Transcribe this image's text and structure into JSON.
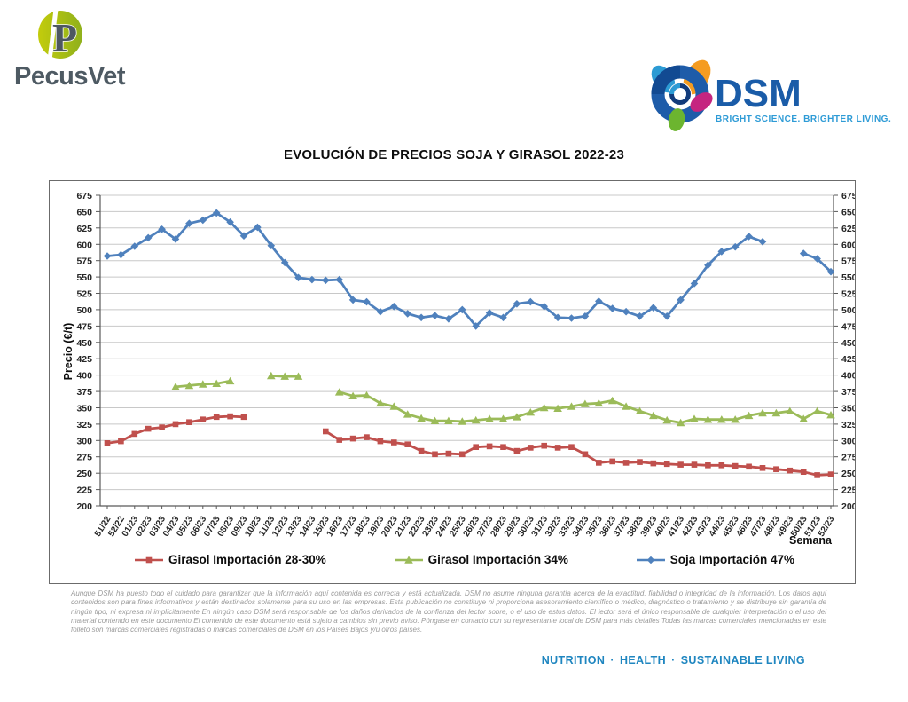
{
  "header": {
    "pecusvet_logo_text": "PecusVet",
    "dsm_logo_text": "DSM",
    "dsm_tagline": "BRIGHT SCIENCE. BRIGHTER LIVING."
  },
  "chart_data": {
    "type": "line",
    "title": "EVOLUCIÓN DE PRECIOS SOJA Y GIRASOL 2022-23",
    "ylabel": "Precio (€/t)",
    "xlabel": "Semana",
    "ylim": [
      200,
      675
    ],
    "ytick_step": 25,
    "grid": true,
    "legend_position": "bottom",
    "categories": [
      "51/22",
      "52/22",
      "01/23",
      "02/23",
      "03/23",
      "04/23",
      "05/23",
      "06/23",
      "07/23",
      "08/23",
      "09/23",
      "10/23",
      "11/23",
      "12/23",
      "13/23",
      "14/23",
      "15/23",
      "16/23",
      "17/23",
      "18/23",
      "19/23",
      "20/23",
      "21/23",
      "22/23",
      "23/23",
      "24/23",
      "25/23",
      "26/23",
      "27/23",
      "28/23",
      "29/23",
      "30/23",
      "31/23",
      "32/23",
      "33/23",
      "34/23",
      "35/23",
      "36/23",
      "37/23",
      "38/23",
      "39/23",
      "40/23",
      "41/23",
      "42/23",
      "43/23",
      "44/23",
      "45/23",
      "46/23",
      "47/23",
      "48/23",
      "49/23",
      "50/23",
      "51/23",
      "52/23"
    ],
    "series": [
      {
        "name": "Girasol Importación 28-30%",
        "color": "#C0504D",
        "marker": "square",
        "values": [
          296,
          299,
          310,
          318,
          320,
          325,
          328,
          332,
          336,
          337,
          336,
          null,
          null,
          null,
          null,
          null,
          314,
          301,
          303,
          305,
          299,
          297,
          294,
          284,
          279,
          280,
          279,
          290,
          291,
          290,
          284,
          289,
          292,
          289,
          290,
          279,
          266,
          268,
          266,
          267,
          265,
          264,
          263,
          263,
          262,
          262,
          261,
          260,
          258,
          256,
          254,
          252,
          247,
          248
        ]
      },
      {
        "name": "Girasol Importación 34%",
        "color": "#9BBB59",
        "marker": "triangle",
        "values": [
          null,
          null,
          null,
          null,
          null,
          382,
          384,
          386,
          387,
          391,
          null,
          null,
          399,
          398,
          398,
          null,
          null,
          374,
          368,
          369,
          357,
          352,
          340,
          334,
          330,
          330,
          329,
          331,
          333,
          333,
          336,
          343,
          350,
          349,
          352,
          356,
          357,
          361,
          352,
          345,
          338,
          331,
          327,
          333,
          332,
          332,
          332,
          338,
          342,
          342,
          345,
          333,
          345,
          339
        ]
      },
      {
        "name": "Soja Importación 47%",
        "color": "#4F81BD",
        "marker": "diamond",
        "values": [
          582,
          584,
          597,
          610,
          623,
          608,
          632,
          637,
          648,
          634,
          613,
          626,
          598,
          572,
          549,
          546,
          545,
          546,
          515,
          512,
          497,
          505,
          494,
          488,
          491,
          486,
          500,
          475,
          495,
          488,
          509,
          512,
          505,
          488,
          487,
          490,
          513,
          502,
          497,
          490,
          503,
          490,
          515,
          540,
          568,
          589,
          596,
          612,
          604,
          null,
          null,
          586,
          578,
          558
        ]
      }
    ]
  },
  "footer": {
    "disclaimer": "Aunque DSM ha puesto todo el cuidado para garantizar que la información aquí contenida es correcta y está actualizada, DSM no asume ninguna garantía acerca de la exactitud, fiabilidad o integridad de la información. Los datos aquí contenidos son para fines informativos y están destinados solamente para su uso en las empresas. Esta publicación no constituye ni proporciona asesoramiento científico o médico, diagnóstico o tratamiento y se distribuye sin garantía de ningún tipo, ni expresa ni implícitamente En ningún caso DSM será responsable de los daños derivados de la confianza del lector sobre, o el uso de estos datos. El lector será el único responsable de cualquier interpretación o el uso del material contenido en este documento El contenido de este documento está sujeto a cambios sin previo aviso. Póngase en contacto con su representante local de DSM para más detalles Todas las marcas comerciales mencionadas en este folleto son marcas comerciales registradas o marcas comerciales de DSM en los Países Bajos y/u otros países.",
    "tagline_items": [
      "NUTRITION",
      "HEALTH",
      "SUSTAINABLE LIVING"
    ],
    "tagline_separator": "·",
    "tagline_color": "#1f86c0"
  }
}
